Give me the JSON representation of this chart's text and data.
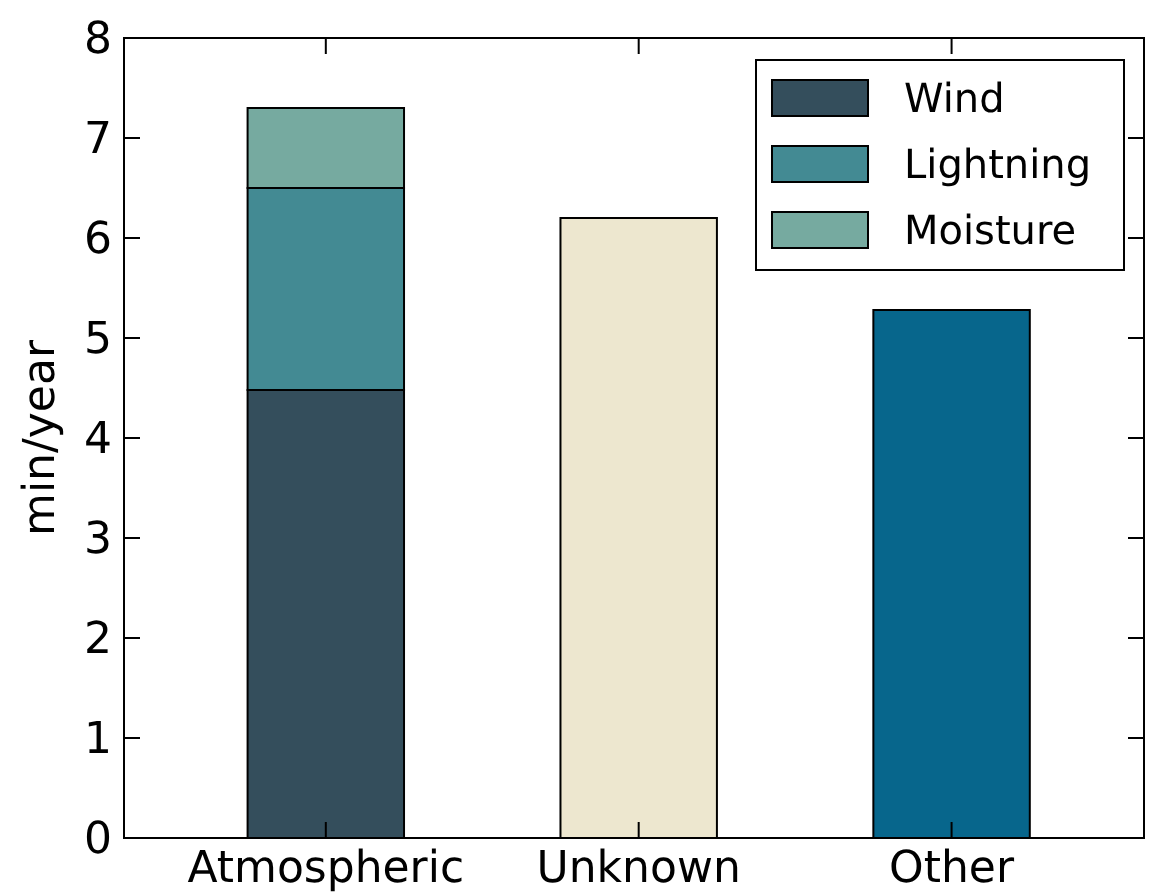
{
  "chart_data": {
    "type": "bar",
    "stacked": true,
    "ylabel": "min/year",
    "categories": [
      "Atmospheric",
      "Unknown",
      "Other"
    ],
    "ylim": [
      0,
      8
    ],
    "yticks": [
      0,
      1,
      2,
      3,
      4,
      5,
      6,
      7,
      8
    ],
    "grid": false,
    "legend": "top right",
    "series": [
      {
        "name": "Wind",
        "color": "#344e5c",
        "values": [
          4.48,
          null,
          null
        ]
      },
      {
        "name": "Lightning",
        "color": "#438a93",
        "values": [
          2.02,
          null,
          null
        ]
      },
      {
        "name": "Moisture",
        "color": "#76aaa0",
        "values": [
          0.8,
          null,
          null
        ]
      },
      {
        "colors": [
          null,
          "#ede7cf",
          "#07668c"
        ],
        "values": [
          null,
          6.2,
          5.28
        ]
      }
    ]
  }
}
